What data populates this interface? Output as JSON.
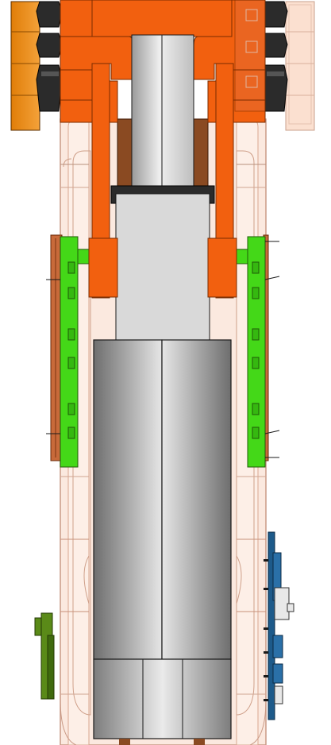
{
  "viewport": {
    "background": "#ffffff"
  },
  "colors": {
    "orange_clamp": "#f2600f",
    "orange_clamp_dark": "#c84a05",
    "orange_block": "#e88810",
    "green_rail": "#44d818",
    "green_rail_dark": "#1f7a08",
    "brown_bracket": "#b85a2a",
    "olive_bracket": "#5a8a18",
    "housing_fill": "#fbe8de",
    "housing_stroke": "#d9a890",
    "rod_grey": "#d4d4d4",
    "cylinder_grey": "#c2c2c2",
    "cylinder_dark": "#7a7a7a",
    "nut_black": "#2b2b2b",
    "sensor_blue": "#1d5a8a",
    "outline": "#1a1a1a"
  },
  "parts": [
    {
      "name": "hydraulic-rod-icon"
    },
    {
      "name": "hydraulic-cylinder-icon"
    },
    {
      "name": "clevis-clamp-left-icon"
    },
    {
      "name": "clevis-clamp-right-icon"
    },
    {
      "name": "hex-nut-icon"
    },
    {
      "name": "guide-rail-left-icon"
    },
    {
      "name": "guide-rail-right-icon"
    },
    {
      "name": "boom-housing-icon"
    },
    {
      "name": "sensor-board-icon"
    },
    {
      "name": "mount-bracket-icon"
    }
  ]
}
